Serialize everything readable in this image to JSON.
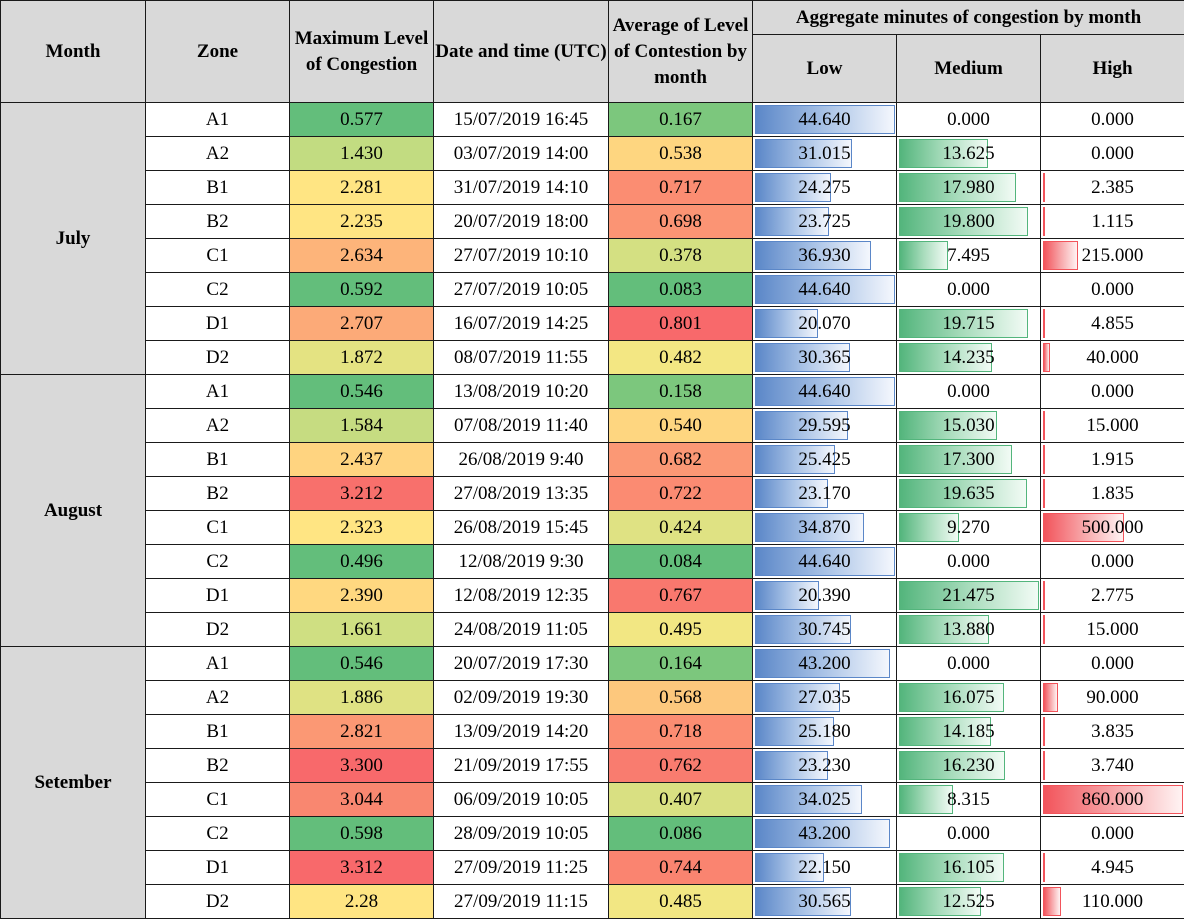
{
  "headers": {
    "month": "Month",
    "zone": "Zone",
    "max_level": "Maximum Level of Congestion",
    "datetime": "Date and time (UTC)",
    "avg_level": "Average of Level of Contestion by month",
    "aggregate": "Aggregate minutes of congestion by month",
    "low": "Low",
    "medium": "Medium",
    "high": "High"
  },
  "scales": {
    "low_max": 44.64,
    "medium_max": 21.475,
    "high_max": 860
  },
  "groups": [
    {
      "month": "July",
      "rows": [
        {
          "zone": "A1",
          "max": "0.577",
          "max_color": "#63be7b",
          "dt": "15/07/2019 16:45",
          "avg": "0.167",
          "avg_color": "#7cc77d",
          "low": "44.640",
          "low_v": 44.64,
          "med": "0.000",
          "med_v": 0,
          "high": "0.000",
          "high_v": 0
        },
        {
          "zone": "A2",
          "max": "1.430",
          "max_color": "#c2dc81",
          "dt": "03/07/2019 14:00",
          "avg": "0.538",
          "avg_color": "#fed680",
          "low": "31.015",
          "low_v": 31.015,
          "med": "13.625",
          "med_v": 13.625,
          "high": "0.000",
          "high_v": 0
        },
        {
          "zone": "B1",
          "max": "2.281",
          "max_color": "#ffe583",
          "dt": "31/07/2019 14:10",
          "avg": "0.717",
          "avg_color": "#fb8d72",
          "low": "24.275",
          "low_v": 24.275,
          "med": "17.980",
          "med_v": 17.98,
          "high": "2.385",
          "high_v": 2.385
        },
        {
          "zone": "B2",
          "max": "2.235",
          "max_color": "#ffe583",
          "dt": "20/07/2019 18:00",
          "avg": "0.698",
          "avg_color": "#fb9474",
          "low": "23.725",
          "low_v": 23.725,
          "med": "19.800",
          "med_v": 19.8,
          "high": "1.115",
          "high_v": 1.115
        },
        {
          "zone": "C1",
          "max": "2.634",
          "max_color": "#fdb47a",
          "dt": "27/07/2019 10:10",
          "avg": "0.378",
          "avg_color": "#d4e082",
          "low": "36.930",
          "low_v": 36.93,
          "med": "7.495",
          "med_v": 7.495,
          "high": "215.000",
          "high_v": 215
        },
        {
          "zone": "C2",
          "max": "0.592",
          "max_color": "#63be7b",
          "dt": "27/07/2019 10:05",
          "avg": "0.083",
          "avg_color": "#63be7b",
          "low": "44.640",
          "low_v": 44.64,
          "med": "0.000",
          "med_v": 0,
          "high": "0.000",
          "high_v": 0
        },
        {
          "zone": "D1",
          "max": "2.707",
          "max_color": "#fcaa78",
          "dt": "16/07/2019 14:25",
          "avg": "0.801",
          "avg_color": "#f8696b",
          "low": "20.070",
          "low_v": 20.07,
          "med": "19.715",
          "med_v": 19.715,
          "high": "4.855",
          "high_v": 4.855
        },
        {
          "zone": "D2",
          "max": "1.872",
          "max_color": "#e4e382",
          "dt": "08/07/2019 11:55",
          "avg": "0.482",
          "avg_color": "#f3e783",
          "low": "30.365",
          "low_v": 30.365,
          "med": "14.235",
          "med_v": 14.235,
          "high": "40.000",
          "high_v": 40
        }
      ]
    },
    {
      "month": "August",
      "rows": [
        {
          "zone": "A1",
          "max": "0.546",
          "max_color": "#63be7b",
          "dt": "13/08/2019 10:20",
          "avg": "0.158",
          "avg_color": "#7cc77d",
          "low": "44.640",
          "low_v": 44.64,
          "med": "0.000",
          "med_v": 0,
          "high": "0.000",
          "high_v": 0
        },
        {
          "zone": "A2",
          "max": "1.584",
          "max_color": "#c6dc81",
          "dt": "07/08/2019 11:40",
          "avg": "0.540",
          "avg_color": "#fed680",
          "low": "29.595",
          "low_v": 29.595,
          "med": "15.030",
          "med_v": 15.03,
          "high": "15.000",
          "high_v": 15
        },
        {
          "zone": "B1",
          "max": "2.437",
          "max_color": "#ffd480",
          "dt": "26/08/2019 9:40",
          "avg": "0.682",
          "avg_color": "#fb9875",
          "low": "25.425",
          "low_v": 25.425,
          "med": "17.300",
          "med_v": 17.3,
          "high": "1.915",
          "high_v": 1.915
        },
        {
          "zone": "B2",
          "max": "3.212",
          "max_color": "#f8706c",
          "dt": "27/08/2019 13:35",
          "avg": "0.722",
          "avg_color": "#fb8b72",
          "low": "23.170",
          "low_v": 23.17,
          "med": "19.635",
          "med_v": 19.635,
          "high": "1.835",
          "high_v": 1.835
        },
        {
          "zone": "C1",
          "max": "2.323",
          "max_color": "#ffe583",
          "dt": "26/08/2019 15:45",
          "avg": "0.424",
          "avg_color": "#dfe283",
          "low": "34.870",
          "low_v": 34.87,
          "med": "9.270",
          "med_v": 9.27,
          "high": "500.000",
          "high_v": 500
        },
        {
          "zone": "C2",
          "max": "0.496",
          "max_color": "#63be7b",
          "dt": "12/08/2019 9:30",
          "avg": "0.084",
          "avg_color": "#63be7b",
          "low": "44.640",
          "low_v": 44.64,
          "med": "0.000",
          "med_v": 0,
          "high": "0.000",
          "high_v": 0
        },
        {
          "zone": "D1",
          "max": "2.390",
          "max_color": "#ffd880",
          "dt": "12/08/2019 12:35",
          "avg": "0.767",
          "avg_color": "#f9786e",
          "low": "20.390",
          "low_v": 20.39,
          "med": "21.475",
          "med_v": 21.475,
          "high": "2.775",
          "high_v": 2.775
        },
        {
          "zone": "D2",
          "max": "1.661",
          "max_color": "#cfdf82",
          "dt": "24/08/2019 11:05",
          "avg": "0.495",
          "avg_color": "#f2e783",
          "low": "30.745",
          "low_v": 30.745,
          "med": "13.880",
          "med_v": 13.88,
          "high": "15.000",
          "high_v": 15
        }
      ]
    },
    {
      "month": "Setember",
      "rows": [
        {
          "zone": "A1",
          "max": "0.546",
          "max_color": "#63be7b",
          "dt": "20/07/2019 17:30",
          "avg": "0.164",
          "avg_color": "#7cc77d",
          "low": "43.200",
          "low_v": 43.2,
          "med": "0.000",
          "med_v": 0,
          "high": "0.000",
          "high_v": 0
        },
        {
          "zone": "A2",
          "max": "1.886",
          "max_color": "#dfe283",
          "dt": "02/09/2019 19:30",
          "avg": "0.568",
          "avg_color": "#fdc87d",
          "low": "27.035",
          "low_v": 27.035,
          "med": "16.075",
          "med_v": 16.075,
          "high": "90.000",
          "high_v": 90
        },
        {
          "zone": "B1",
          "max": "2.821",
          "max_color": "#fb9874",
          "dt": "13/09/2019 14:20",
          "avg": "0.718",
          "avg_color": "#fb8d72",
          "low": "25.180",
          "low_v": 25.18,
          "med": "14.185",
          "med_v": 14.185,
          "high": "3.835",
          "high_v": 3.835
        },
        {
          "zone": "B2",
          "max": "3.300",
          "max_color": "#f8696b",
          "dt": "21/09/2019 17:55",
          "avg": "0.762",
          "avg_color": "#f97c6f",
          "low": "23.230",
          "low_v": 23.23,
          "med": "16.230",
          "med_v": 16.23,
          "high": "3.740",
          "high_v": 3.74
        },
        {
          "zone": "C1",
          "max": "3.044",
          "max_color": "#f98770",
          "dt": "06/09/2019 10:05",
          "avg": "0.407",
          "avg_color": "#d9e082",
          "low": "34.025",
          "low_v": 34.025,
          "med": "8.315",
          "med_v": 8.315,
          "high": "860.000",
          "high_v": 860
        },
        {
          "zone": "C2",
          "max": "0.598",
          "max_color": "#63be7b",
          "dt": "28/09/2019 10:05",
          "avg": "0.086",
          "avg_color": "#63be7b",
          "low": "43.200",
          "low_v": 43.2,
          "med": "0.000",
          "med_v": 0,
          "high": "0.000",
          "high_v": 0
        },
        {
          "zone": "D1",
          "max": "3.312",
          "max_color": "#f8696b",
          "dt": "27/09/2019 11:25",
          "avg": "0.744",
          "avg_color": "#fa8470",
          "low": "22.150",
          "low_v": 22.15,
          "med": "16.105",
          "med_v": 16.105,
          "high": "4.945",
          "high_v": 4.945
        },
        {
          "zone": "D2",
          "max": "2.28",
          "max_color": "#ffe583",
          "dt": "27/09/2019 11:15",
          "avg": "0.485",
          "avg_color": "#f2e783",
          "low": "30.565",
          "low_v": 30.565,
          "med": "12.525",
          "med_v": 12.525,
          "high": "110.000",
          "high_v": 110
        }
      ]
    }
  ]
}
